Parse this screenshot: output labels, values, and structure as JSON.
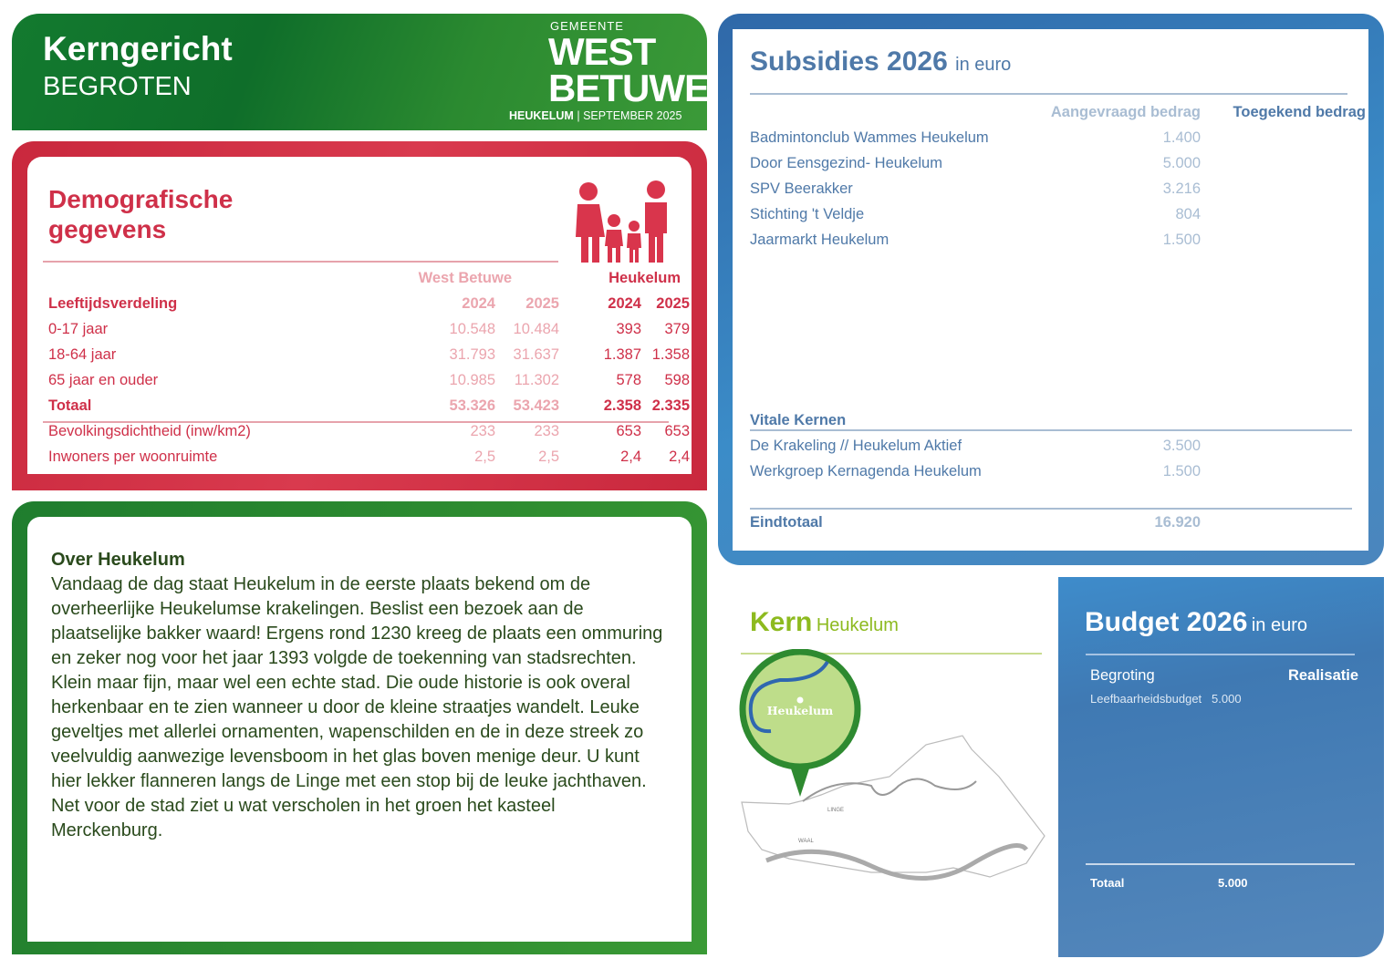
{
  "header": {
    "title": "Kerngericht",
    "subtitle": "BEGROTEN",
    "logo_small": "GEMEENTE",
    "logo_line1": "WEST",
    "logo_line2": "BETUWE",
    "place": "HEUKELUM",
    "separator": "|",
    "date": "SEPTEMBER 2025"
  },
  "demo": {
    "title_line1": "Demografische",
    "title_line2": "gegevens",
    "icon": "family-icon",
    "group1": "West Betuwe",
    "group2": "Heukelum",
    "section": "Leeftijdsverdeling",
    "years": [
      "2024",
      "2025",
      "2024",
      "2025"
    ],
    "rows": [
      {
        "label": "0-17 jaar",
        "values": [
          "10.548",
          "10.484",
          "393",
          "379"
        ]
      },
      {
        "label": "18-64 jaar",
        "values": [
          "31.793",
          "31.637",
          "1.387",
          "1.358"
        ]
      },
      {
        "label": "65 jaar en ouder",
        "values": [
          "10.985",
          "11.302",
          "578",
          "598"
        ]
      },
      {
        "label": "Totaal",
        "values": [
          "53.326",
          "53.423",
          "2.358",
          "2.335"
        ]
      },
      {
        "label": "Bevolkingsdichtheid (inw/km2)",
        "values": [
          "233",
          "233",
          "653",
          "653"
        ]
      },
      {
        "label": "Inwoners per woonruimte",
        "values": [
          "2,5",
          "2,5",
          "2,4",
          "2,4"
        ]
      }
    ]
  },
  "over": {
    "title": "Over Heukelum",
    "text": "Vandaag de dag staat Heukelum in de eerste plaats bekend om de overheerlijke Heukelumse krakelingen. Beslist een bezoek aan de plaatselijke bakker waard! Ergens rond 1230 kreeg de plaats een ommuring en zeker nog voor het jaar 1393 volgde de toekenning van stadsrechten. Klein maar fijn, maar wel een echte stad. Die oude historie is ook overal herkenbaar en te zien wanneer u door de kleine straatjes wandelt. Leuke geveltjes met allerlei ornamenten, wapenschilden en de in deze streek zo veelvuldig aanwezige levensboom in het glas boven menige deur. U kunt hier lekker flanneren langs de Linge met een stop bij de leuke jachthaven. Net voor de stad ziet u wat verscholen in het groen het kasteel Merckenburg."
  },
  "subs": {
    "title": "Subsidies 2026",
    "unit": "in euro",
    "col_requested": "Aangevraagd bedrag",
    "col_granted": "Toegekend bedrag",
    "items": [
      {
        "name": "Badmintonclub Wammes Heukelum",
        "requested": "1.400"
      },
      {
        "name": "Door Eensgezind- Heukelum",
        "requested": "5.000"
      },
      {
        "name": "SPV Beerakker",
        "requested": "3.216"
      },
      {
        "name": "Stichting 't Veldje",
        "requested": "804"
      },
      {
        "name": "Jaarmarkt Heukelum",
        "requested": "1.500"
      }
    ],
    "vital_title": "Vitale Kernen",
    "vital_items": [
      {
        "name": "De Krakeling // Heukelum Aktief",
        "requested": "3.500"
      },
      {
        "name": "Werkgroep Kernagenda Heukelum",
        "requested": "1.500"
      }
    ],
    "total_label": "Eindtotaal",
    "total": "16.920"
  },
  "kern": {
    "title": "Kern",
    "name": "Heukelum",
    "map_label": "Heukelum",
    "map_labels": [
      "LINGE",
      "WAAL"
    ]
  },
  "budget": {
    "title": "Budget 2026",
    "unit": "in euro",
    "col1": "Begroting",
    "col2": "Realisatie",
    "item": "Leefbaarheidsbudget",
    "item_value": "5.000",
    "total_label": "Totaal",
    "total": "5.000"
  },
  "colors": {
    "green": "#2d8a32",
    "red": "#cf3049",
    "blue": "#3f79b3",
    "lime": "#8dba1f"
  }
}
